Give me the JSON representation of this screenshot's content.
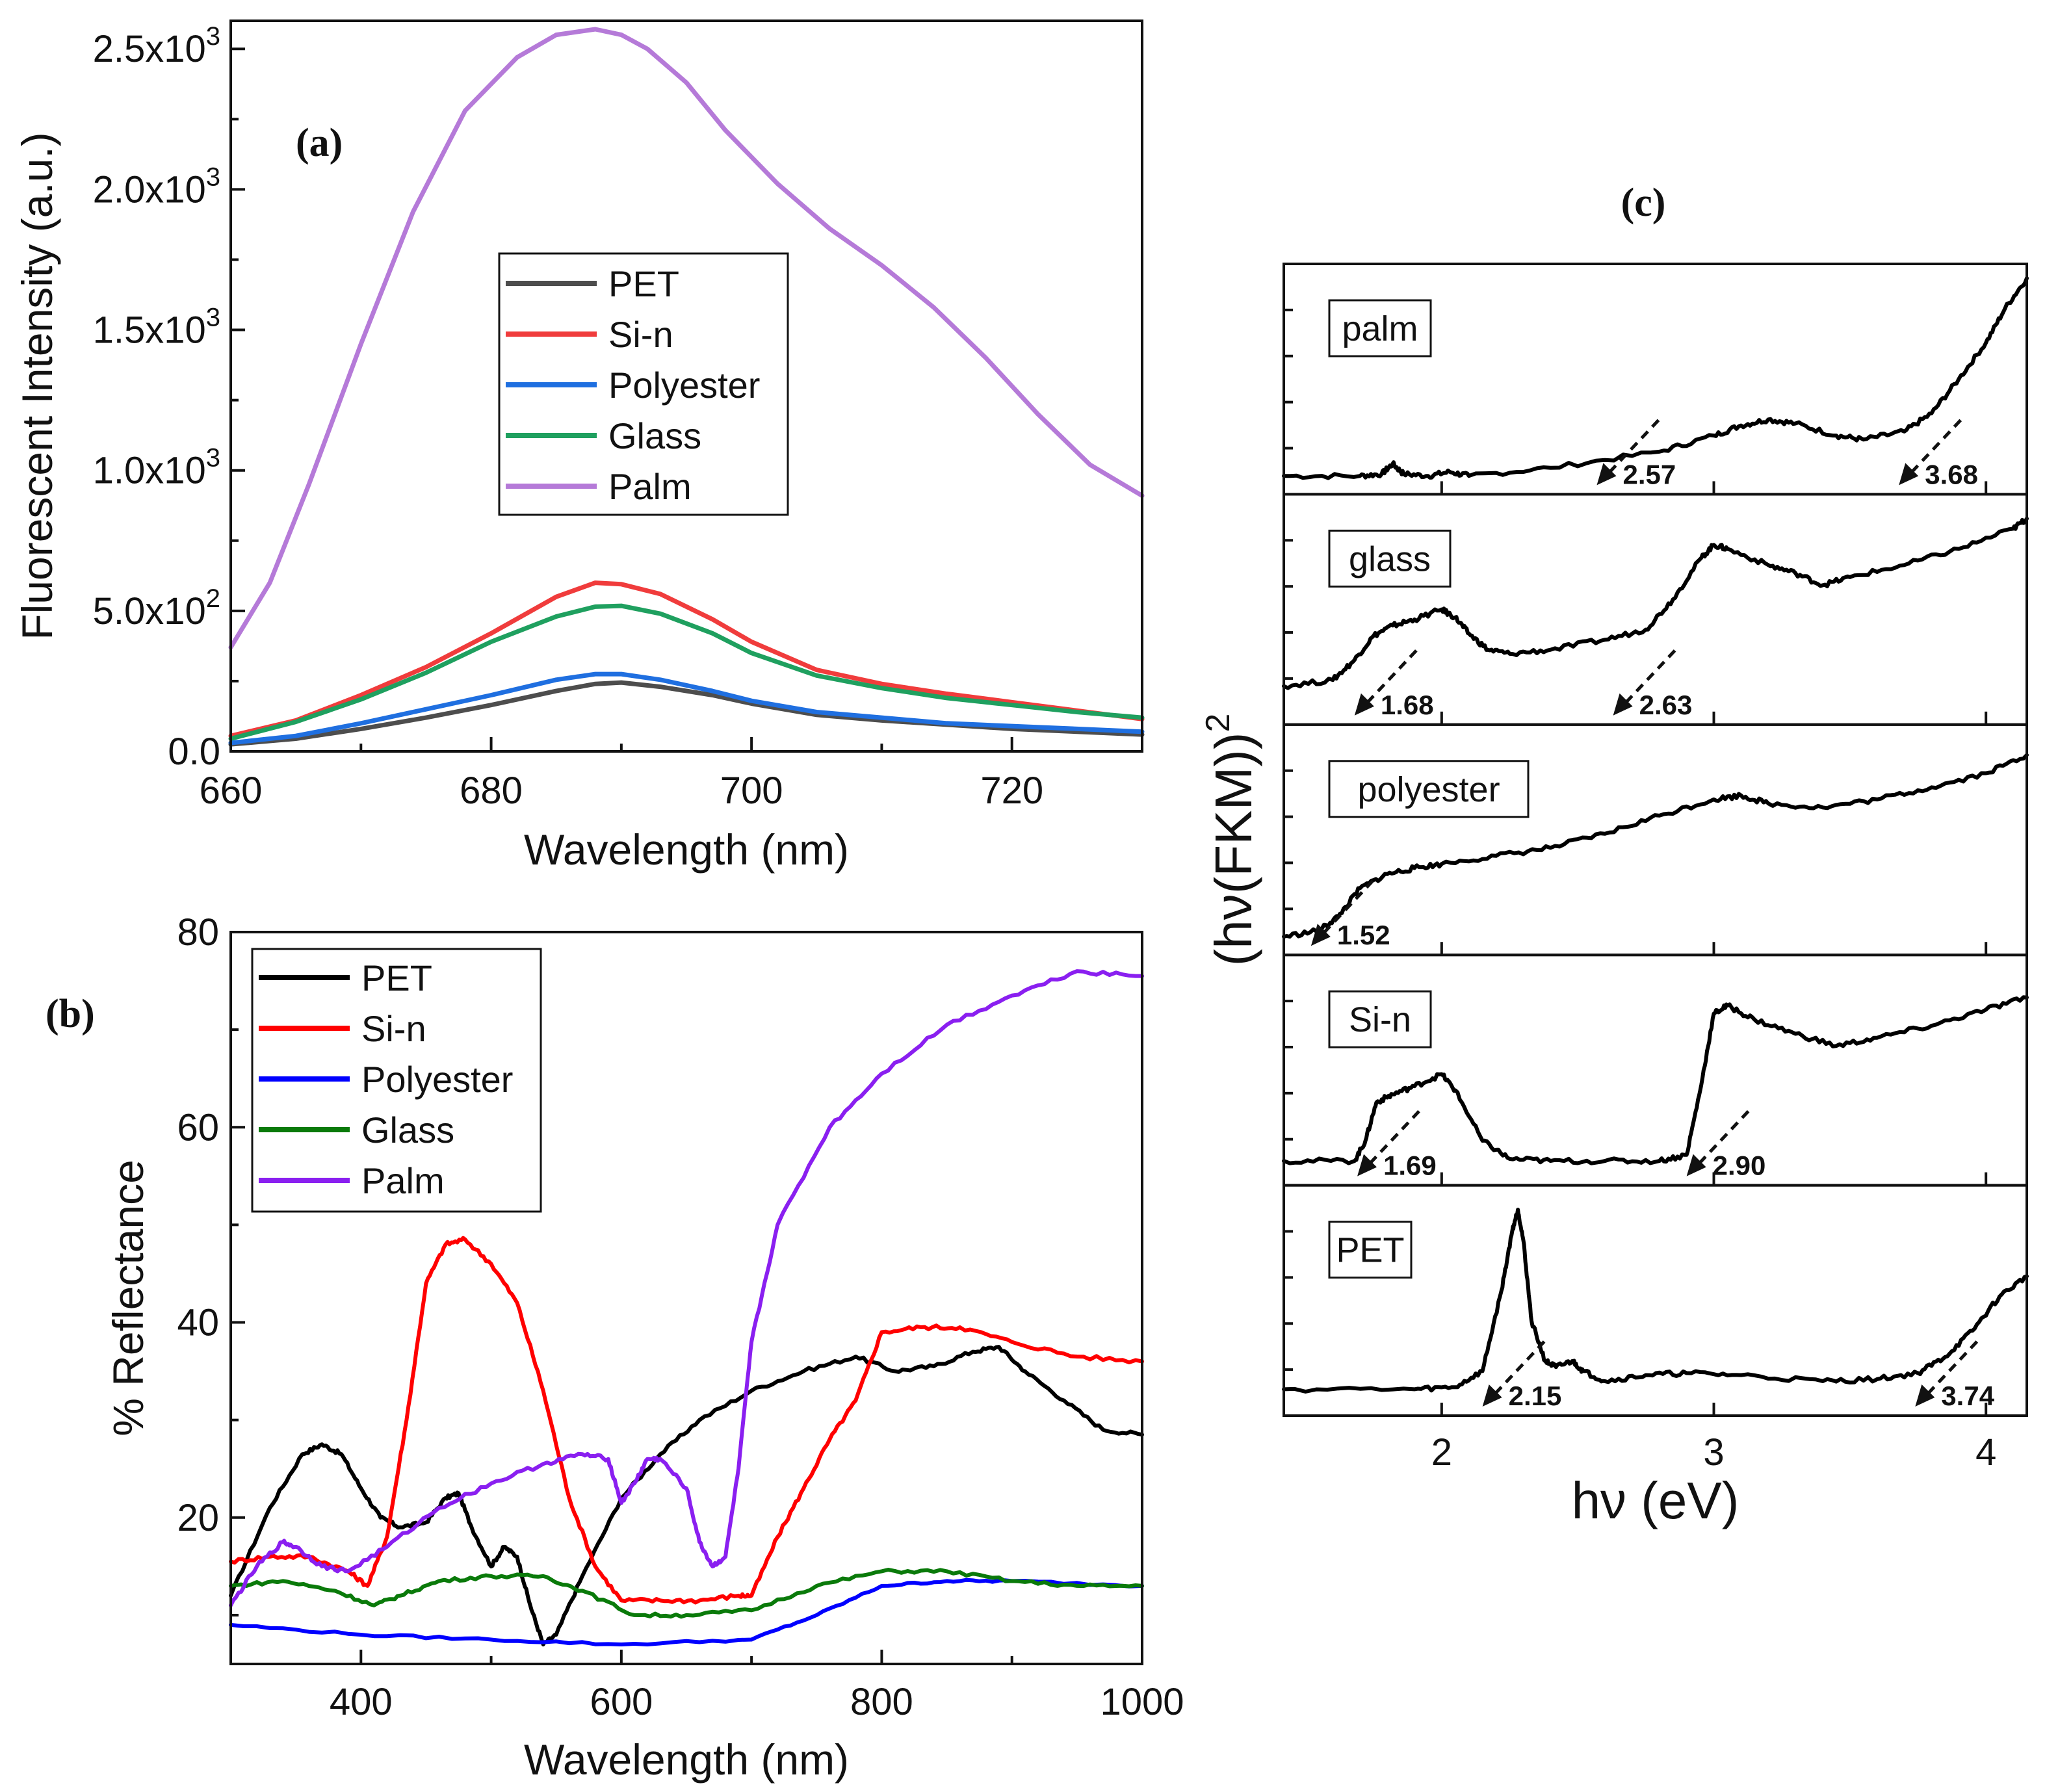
{
  "chart_data": [
    {
      "id": "a",
      "type": "line",
      "panel_label": "(a)",
      "xlabel": "Wavelength (nm)",
      "ylabel": "Fluorescent Intensity (a.u.)",
      "xlim": [
        660,
        730
      ],
      "ylim": [
        0,
        2600
      ],
      "xticks": [
        {
          "v": 660,
          "label": "660"
        },
        {
          "v": 680,
          "label": "680"
        },
        {
          "v": 700,
          "label": "700"
        },
        {
          "v": 720,
          "label": "720"
        }
      ],
      "yticks": [
        {
          "v": 0,
          "mant": "0.0",
          "exp": ""
        },
        {
          "v": 500,
          "mant": "5.0x10",
          "exp": "2"
        },
        {
          "v": 1000,
          "mant": "1.0x10",
          "exp": "3"
        },
        {
          "v": 1500,
          "mant": "1.5x10",
          "exp": "3"
        },
        {
          "v": 2000,
          "mant": "2.0x10",
          "exp": "3"
        },
        {
          "v": 2500,
          "mant": "2.5x10",
          "exp": "3"
        }
      ],
      "legend_position": "center",
      "series": [
        {
          "name": "PET",
          "color": "#4d4d4d",
          "x": [
            660,
            665,
            670,
            675,
            680,
            685,
            688,
            690,
            693,
            697,
            700,
            705,
            710,
            715,
            720,
            725,
            730
          ],
          "y": [
            25,
            45,
            80,
            120,
            165,
            215,
            240,
            245,
            230,
            200,
            170,
            130,
            110,
            95,
            80,
            70,
            60
          ]
        },
        {
          "name": "Si-n",
          "color": "#f03c3c",
          "x": [
            660,
            665,
            670,
            675,
            680,
            685,
            688,
            690,
            693,
            697,
            700,
            705,
            710,
            715,
            720,
            725,
            730
          ],
          "y": [
            55,
            110,
            200,
            300,
            420,
            550,
            600,
            595,
            560,
            470,
            390,
            290,
            240,
            205,
            175,
            145,
            115
          ]
        },
        {
          "name": "Polyester",
          "color": "#1f6fe0",
          "x": [
            660,
            665,
            670,
            675,
            680,
            685,
            688,
            690,
            693,
            697,
            700,
            705,
            710,
            715,
            720,
            725,
            730
          ],
          "y": [
            30,
            55,
            100,
            150,
            200,
            255,
            275,
            275,
            255,
            215,
            180,
            140,
            120,
            100,
            90,
            80,
            70
          ]
        },
        {
          "name": "Glass",
          "color": "#1fa05f",
          "x": [
            660,
            665,
            670,
            675,
            680,
            685,
            688,
            690,
            693,
            697,
            700,
            705,
            710,
            715,
            720,
            725,
            730
          ],
          "y": [
            45,
            105,
            185,
            280,
            390,
            480,
            515,
            518,
            490,
            420,
            350,
            270,
            225,
            190,
            165,
            140,
            120
          ]
        },
        {
          "name": "Palm",
          "color": "#b57ad8",
          "x": [
            660,
            663,
            666,
            670,
            674,
            678,
            682,
            685,
            688,
            690,
            692,
            695,
            698,
            702,
            706,
            710,
            714,
            718,
            722,
            726,
            730
          ],
          "y": [
            370,
            600,
            950,
            1450,
            1920,
            2280,
            2470,
            2550,
            2570,
            2550,
            2500,
            2380,
            2210,
            2020,
            1860,
            1730,
            1580,
            1400,
            1200,
            1020,
            910
          ]
        }
      ]
    },
    {
      "id": "b",
      "type": "line",
      "panel_label": "(b)",
      "xlabel": "Wavelength (nm)",
      "ylabel": "% Reflectance",
      "xlim": [
        300,
        1000
      ],
      "ylim": [
        5,
        80
      ],
      "xticks": [
        {
          "v": 400,
          "label": "400"
        },
        {
          "v": 600,
          "label": "600"
        },
        {
          "v": 800,
          "label": "800"
        },
        {
          "v": 1000,
          "label": "1000"
        }
      ],
      "yticks": [
        {
          "v": 20,
          "label": "20"
        },
        {
          "v": 40,
          "label": "40"
        },
        {
          "v": 60,
          "label": "60"
        },
        {
          "v": 80,
          "label": "80"
        }
      ],
      "legend_position": "top-left",
      "series": [
        {
          "name": "PET",
          "color": "#000000",
          "x": [
            300,
            330,
            355,
            370,
            385,
            400,
            415,
            430,
            450,
            465,
            475,
            485,
            500,
            510,
            520,
            530,
            540,
            550,
            570,
            600,
            630,
            660,
            700,
            740,
            780,
            810,
            840,
            870,
            890,
            910,
            940,
            970,
            1000
          ],
          "y": [
            12,
            21,
            26.5,
            27.5,
            26.5,
            23,
            20,
            19,
            19.5,
            22,
            22.5,
            19,
            15,
            17,
            16,
            11,
            7,
            8,
            14,
            22,
            26.5,
            30,
            33,
            35,
            36.5,
            35,
            35.5,
            37,
            37.5,
            35,
            32,
            29,
            28.5
          ]
        },
        {
          "name": "Si-n",
          "color": "#ff0000",
          "x": [
            300,
            330,
            360,
            390,
            405,
            420,
            435,
            450,
            465,
            480,
            500,
            520,
            540,
            560,
            580,
            600,
            630,
            660,
            690,
            700,
            720,
            740,
            760,
            780,
            800,
            830,
            860,
            900,
            950,
            1000
          ],
          "y": [
            15.5,
            16,
            16,
            14.5,
            13,
            18,
            30,
            44,
            48,
            48.5,
            46,
            42,
            33,
            22,
            15,
            11.5,
            11.5,
            11.5,
            12,
            12,
            18,
            23,
            28,
            32,
            39,
            39.5,
            39.5,
            38,
            36.5,
            36
          ]
        },
        {
          "name": "Polyester",
          "color": "#0000ff",
          "x": [
            300,
            400,
            500,
            600,
            700,
            750,
            800,
            850,
            900,
            1000
          ],
          "y": [
            9,
            8,
            7.5,
            7,
            7.5,
            10,
            13,
            13.5,
            13.5,
            13
          ]
        },
        {
          "name": "Glass",
          "color": "#0a7a0a",
          "x": [
            300,
            340,
            380,
            410,
            430,
            460,
            500,
            540,
            570,
            610,
            650,
            700,
            750,
            800,
            850,
            900,
            950,
            1000
          ],
          "y": [
            13,
            13.5,
            12.5,
            11,
            12,
            13.5,
            14,
            14,
            12.5,
            10,
            10,
            10.5,
            13,
            14.5,
            14.5,
            13.5,
            13,
            13
          ]
        },
        {
          "name": "Palm",
          "color": "#8a1ff0",
          "x": [
            300,
            320,
            340,
            350,
            370,
            390,
            420,
            460,
            500,
            540,
            570,
            590,
            600,
            610,
            620,
            630,
            650,
            660,
            670,
            680,
            690,
            700,
            720,
            760,
            800,
            850,
            900,
            950,
            1000
          ],
          "y": [
            11,
            15,
            17.5,
            17,
            15,
            14.5,
            17,
            21,
            23.5,
            25.5,
            26.5,
            26,
            21.5,
            23.5,
            26,
            26,
            23,
            17.5,
            15,
            16,
            25,
            38,
            50,
            60,
            65.5,
            70.5,
            73.5,
            76,
            75.5
          ]
        }
      ]
    },
    {
      "id": "c",
      "type": "line",
      "panel_label": "(c)",
      "xlabel": "hν (eV)",
      "ylabel_base": "(hν(FKM))",
      "ylabel_exp": "2",
      "xlim": [
        1.42,
        4.15
      ],
      "xticks": [
        {
          "v": 2,
          "label": "2"
        },
        {
          "v": 3,
          "label": "3"
        },
        {
          "v": 4,
          "label": "4"
        }
      ],
      "subplots": [
        {
          "label": "palm",
          "color": "#000000",
          "x": [
            1.42,
            1.7,
            1.78,
            1.82,
            1.86,
            1.95,
            2.03,
            2.1,
            2.4,
            2.8,
            3.0,
            3.1,
            3.2,
            3.3,
            3.45,
            3.55,
            3.7,
            3.8,
            3.9,
            4.0,
            4.07,
            4.15
          ],
          "y": [
            0.02,
            0.02,
            0.03,
            0.08,
            0.03,
            0.02,
            0.04,
            0.02,
            0.06,
            0.14,
            0.22,
            0.27,
            0.3,
            0.28,
            0.22,
            0.2,
            0.24,
            0.33,
            0.5,
            0.68,
            0.85,
            1.0
          ],
          "annotations": [
            {
              "text": "2.57",
              "x": 2.57
            },
            {
              "text": "3.68",
              "x": 3.68
            }
          ]
        },
        {
          "label": "glass",
          "color": "#000000",
          "x": [
            1.42,
            1.6,
            1.68,
            1.75,
            1.82,
            1.9,
            2.0,
            2.05,
            2.1,
            2.17,
            2.25,
            2.4,
            2.6,
            2.75,
            2.85,
            2.95,
            3.0,
            3.05,
            3.2,
            3.3,
            3.4,
            3.5,
            3.7,
            3.9,
            4.1,
            4.15
          ],
          "y": [
            0.12,
            0.15,
            0.25,
            0.37,
            0.42,
            0.45,
            0.5,
            0.46,
            0.38,
            0.3,
            0.28,
            0.3,
            0.35,
            0.4,
            0.55,
            0.75,
            0.82,
            0.8,
            0.72,
            0.68,
            0.62,
            0.66,
            0.72,
            0.8,
            0.9,
            0.95
          ],
          "annotations": [
            {
              "text": "1.68",
              "x": 1.68
            },
            {
              "text": "2.63",
              "x": 2.63
            }
          ]
        },
        {
          "label": "polyester",
          "color": "#000000",
          "x": [
            1.42,
            1.55,
            1.62,
            1.7,
            1.8,
            1.9,
            2.0,
            2.2,
            2.4,
            2.6,
            2.8,
            3.0,
            3.1,
            3.2,
            3.4,
            3.6,
            3.8,
            4.0,
            4.15
          ],
          "y": [
            0.02,
            0.05,
            0.12,
            0.26,
            0.33,
            0.36,
            0.38,
            0.42,
            0.46,
            0.53,
            0.62,
            0.7,
            0.72,
            0.68,
            0.66,
            0.7,
            0.76,
            0.83,
            0.92
          ],
          "annotations": [
            {
              "text": "1.52",
              "x": 1.52
            }
          ]
        },
        {
          "label": "Si-n",
          "color": "#000000",
          "x": [
            1.42,
            1.68,
            1.72,
            1.76,
            1.82,
            1.9,
            2.0,
            2.05,
            2.15,
            2.25,
            2.4,
            2.6,
            2.8,
            2.9,
            2.95,
            3.0,
            3.05,
            3.15,
            3.3,
            3.45,
            3.6,
            3.8,
            4.0,
            4.15
          ],
          "y": [
            0.05,
            0.05,
            0.15,
            0.34,
            0.38,
            0.42,
            0.48,
            0.4,
            0.15,
            0.06,
            0.05,
            0.05,
            0.05,
            0.08,
            0.4,
            0.78,
            0.82,
            0.75,
            0.68,
            0.62,
            0.66,
            0.72,
            0.8,
            0.86
          ],
          "annotations": [
            {
              "text": "1.69",
              "x": 1.69
            },
            {
              "text": "2.90",
              "x": 2.9
            }
          ]
        },
        {
          "label": "PET",
          "color": "#000000",
          "x": [
            1.42,
            1.9,
            2.05,
            2.15,
            2.22,
            2.26,
            2.28,
            2.3,
            2.33,
            2.38,
            2.42,
            2.48,
            2.52,
            2.6,
            2.75,
            2.9,
            3.1,
            3.4,
            3.6,
            3.75,
            3.85,
            3.95,
            4.05,
            4.15
          ],
          "y": [
            0.06,
            0.06,
            0.07,
            0.15,
            0.55,
            0.85,
            0.95,
            0.8,
            0.4,
            0.2,
            0.17,
            0.2,
            0.15,
            0.1,
            0.13,
            0.14,
            0.13,
            0.1,
            0.11,
            0.14,
            0.22,
            0.35,
            0.52,
            0.62
          ],
          "annotations": [
            {
              "text": "2.15",
              "x": 2.15
            },
            {
              "text": "3.74",
              "x": 3.74
            }
          ]
        }
      ]
    }
  ]
}
